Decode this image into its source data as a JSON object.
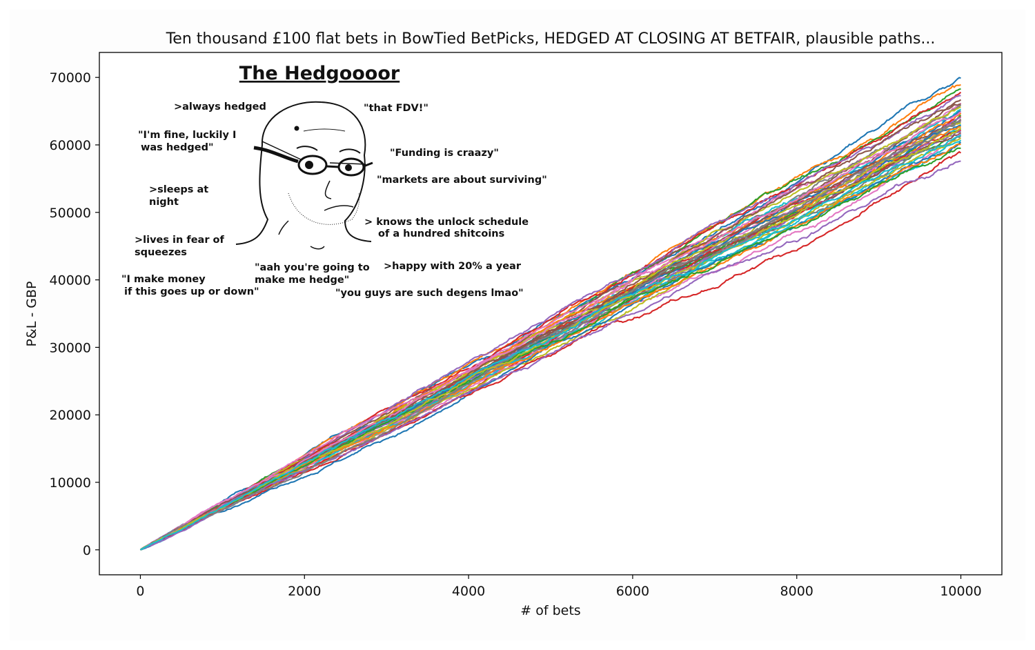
{
  "chart_data": {
    "type": "line",
    "title": "Ten thousand £100 flat bets in BowTied BetPicks, HEDGED AT CLOSING AT BETFAIR, plausible paths...",
    "xlabel": "# of bets",
    "ylabel": "P&L - GBP",
    "xlim": [
      -500,
      10500
    ],
    "ylim": [
      -3700,
      73700
    ],
    "xticks": [
      "0",
      "2000",
      "4000",
      "6000",
      "8000",
      "10000"
    ],
    "yticks": [
      "0",
      "10000",
      "20000",
      "30000",
      "40000",
      "50000",
      "60000",
      "70000"
    ],
    "grid": false,
    "legend": "none",
    "n_paths": 40,
    "x_start": 0,
    "x_end": 10000,
    "series_summary": {
      "start_value": 0,
      "final_values": [
        69900,
        68900,
        68300,
        67800,
        67300,
        66700,
        66200,
        65900,
        65600,
        65300,
        65000,
        64700,
        64400,
        64200,
        64000,
        63800,
        63600,
        63400,
        63200,
        63000,
        62800,
        62600,
        62400,
        62200,
        62000,
        61800,
        61600,
        61300,
        61000,
        60700,
        60400,
        60100,
        59500,
        58800,
        57600,
        66000,
        64900,
        63700,
        62500,
        61500
      ]
    },
    "palette": [
      "#1f77b4",
      "#ff7f0e",
      "#2ca02c",
      "#d62728",
      "#9467bd",
      "#8c564b",
      "#e377c2",
      "#7f7f7f",
      "#bcbd22",
      "#17becf"
    ],
    "inset_meme": {
      "title": "The Hedgoooor",
      "captions": [
        ">always hedged",
        "\"that FDV!\"",
        "\"I'm fine, luckily I",
        "was hedged\"",
        "\"Funding is craazy\"",
        "\"markets are about surviving\"",
        ">sleeps at",
        "night",
        "> knows the unlock schedule",
        "of a hundred shitcoins",
        ">lives in fear of",
        "squeezes",
        "\"aah you're going to",
        "make me  hedge\"",
        ">happy with 20% a year",
        "\"I make money",
        "if this goes up or down\"",
        "\"you guys are such degens lmao\""
      ]
    }
  }
}
